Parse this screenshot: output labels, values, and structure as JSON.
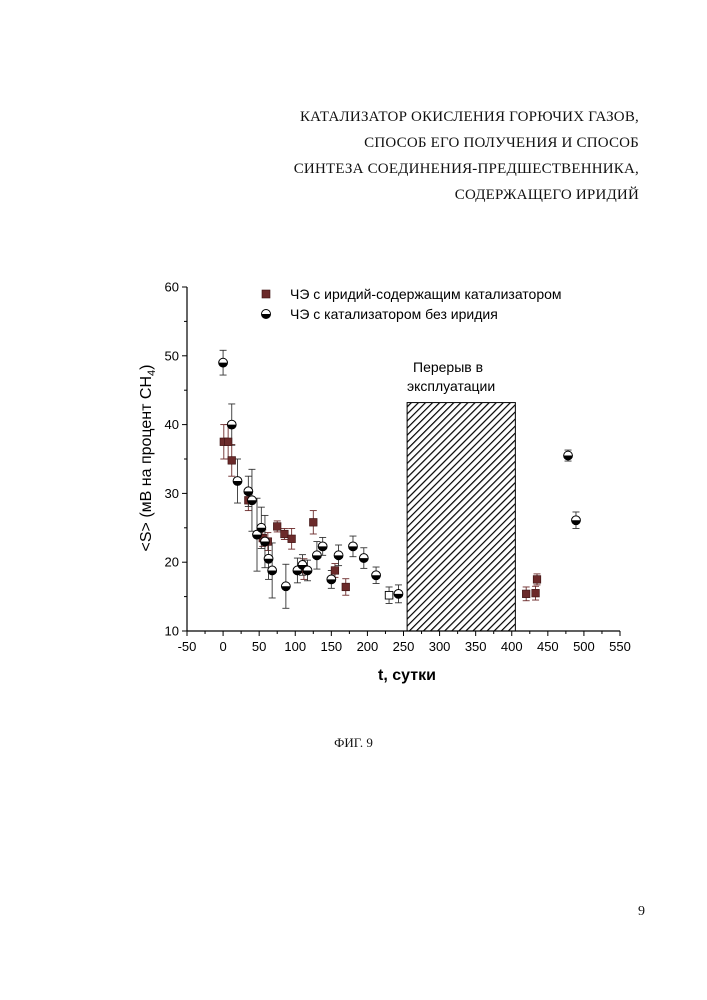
{
  "title_lines": [
    "КАТАЛИЗАТОР ОКИСЛЕНИЯ ГОРЮЧИХ ГАЗОВ,",
    "СПОСОБ ЕГО ПОЛУЧЕНИЯ И СПОСОБ",
    "СИНТЕЗА СОЕДИНЕНИЯ-ПРЕДШЕСТВЕННИКА,",
    "СОДЕРЖАЩЕГО ИРИДИЙ"
  ],
  "caption": "ФИГ. 9",
  "page_number": "9",
  "chart_data": {
    "type": "scatter",
    "xlabel": "t, сутки",
    "ylabel_main": "<S> (мВ на процент CH",
    "ylabel_sub": "4",
    "ylabel_close": ")",
    "xlim": [
      -50,
      550
    ],
    "ylim": [
      10,
      60
    ],
    "xticks": [
      -50,
      0,
      50,
      100,
      150,
      200,
      250,
      300,
      350,
      400,
      450,
      500,
      550
    ],
    "yticks": [
      10,
      20,
      30,
      40,
      50,
      60
    ],
    "grid": false,
    "legend_position": "top-left",
    "annotation": {
      "text_lines": [
        "Перерыв в",
        "эксплуатации"
      ],
      "x_range": [
        255,
        405
      ],
      "y_range": [
        10,
        43.2
      ]
    },
    "series": [
      {
        "name": "ЧЭ с иридий-содержащим катализатором",
        "marker": "square",
        "color": "#6b2a2a",
        "points": [
          {
            "x": 1,
            "y": 37.5,
            "err": 2.5
          },
          {
            "x": 7,
            "y": 37.5,
            "err": 2.5
          },
          {
            "x": 12,
            "y": 34.8,
            "err": 2.3
          },
          {
            "x": 35,
            "y": 29.0,
            "err": 1.5
          },
          {
            "x": 55,
            "y": 23.5,
            "err": 1.2
          },
          {
            "x": 62,
            "y": 23.0,
            "err": 1.3
          },
          {
            "x": 75,
            "y": 25.2,
            "err": 0.8
          },
          {
            "x": 85,
            "y": 24.1,
            "err": 0.8
          },
          {
            "x": 95,
            "y": 23.4,
            "err": 1.5
          },
          {
            "x": 112,
            "y": 19.0,
            "err": 1.5
          },
          {
            "x": 125,
            "y": 25.8,
            "err": 1.7
          },
          {
            "x": 155,
            "y": 18.8,
            "err": 1.0
          },
          {
            "x": 170,
            "y": 16.4,
            "err": 1.2
          },
          {
            "x": 420,
            "y": 15.4,
            "err": 1.0
          },
          {
            "x": 433,
            "y": 15.5,
            "err": 1.0
          },
          {
            "x": 435,
            "y": 17.5,
            "err": 0.8
          }
        ]
      },
      {
        "name": "ЧЭ с катализатором без иридия",
        "marker": "half-circle",
        "color": "#000000",
        "points": [
          {
            "x": 0,
            "y": 49.0,
            "err": 1.8
          },
          {
            "x": 12,
            "y": 40.0,
            "err": 3.0
          },
          {
            "x": 20,
            "y": 31.8,
            "err": 3.2
          },
          {
            "x": 35,
            "y": 30.3,
            "err": 2.2
          },
          {
            "x": 40,
            "y": 29.0,
            "err": 4.5
          },
          {
            "x": 47,
            "y": 24.0,
            "err": 5.3
          },
          {
            "x": 53,
            "y": 25.0,
            "err": 3.0
          },
          {
            "x": 58,
            "y": 23.0,
            "err": 3.8
          },
          {
            "x": 63,
            "y": 20.5,
            "err": 3.0
          },
          {
            "x": 68,
            "y": 18.8,
            "err": 4.0
          },
          {
            "x": 87,
            "y": 16.5,
            "err": 3.2
          },
          {
            "x": 103,
            "y": 18.8,
            "err": 1.8
          },
          {
            "x": 110,
            "y": 19.6,
            "err": 1.5
          },
          {
            "x": 117,
            "y": 18.8,
            "err": 1.5
          },
          {
            "x": 130,
            "y": 21.0,
            "err": 2.0
          },
          {
            "x": 138,
            "y": 22.3,
            "err": 1.3
          },
          {
            "x": 150,
            "y": 17.5,
            "err": 1.3
          },
          {
            "x": 160,
            "y": 21.0,
            "err": 1.5
          },
          {
            "x": 180,
            "y": 22.3,
            "err": 1.5
          },
          {
            "x": 195,
            "y": 20.6,
            "err": 1.5
          },
          {
            "x": 212,
            "y": 18.1,
            "err": 1.2
          },
          {
            "x": 230,
            "y": 15.2,
            "err": 1.2,
            "open": true
          },
          {
            "x": 243,
            "y": 15.4,
            "err": 1.3
          },
          {
            "x": 478,
            "y": 35.5,
            "err": 0.8
          },
          {
            "x": 489,
            "y": 26.1,
            "err": 1.2
          }
        ]
      }
    ]
  }
}
